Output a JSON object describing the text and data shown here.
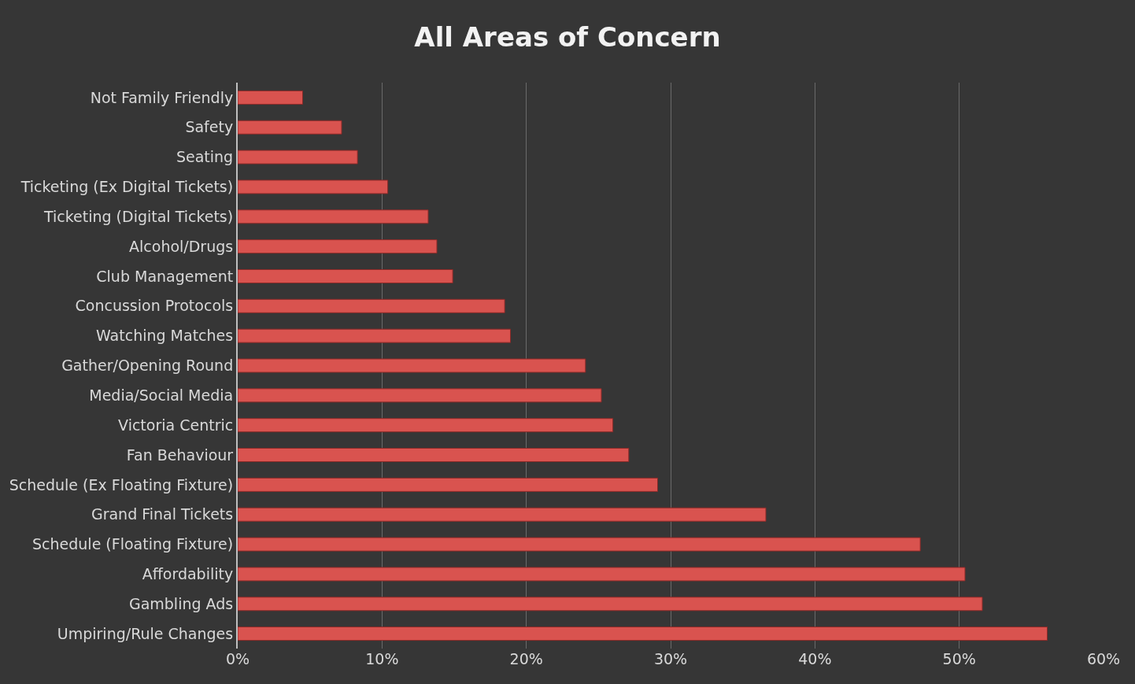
{
  "chart_data": {
    "type": "bar",
    "orientation": "horizontal",
    "title": "All Areas of Concern",
    "categories": [
      "Not Family Friendly",
      "Safety",
      "Seating",
      "Ticketing (Ex Digital Tickets)",
      "Ticketing (Digital Tickets)",
      "Alcohol/Drugs",
      "Club Management",
      "Concussion Protocols",
      "Watching Matches",
      "Gather/Opening Round",
      "Media/Social Media",
      "Victoria Centric",
      "Fan Behaviour",
      "Schedule (Ex Floating Fixture)",
      "Grand Final Tickets",
      "Schedule (Floating Fixture)",
      "Affordability",
      "Gambling Ads",
      "Umpiring/Rule Changes"
    ],
    "values": [
      4.5,
      7.2,
      8.3,
      10.4,
      13.2,
      13.8,
      14.9,
      18.5,
      18.9,
      24.1,
      25.2,
      26.0,
      27.1,
      29.1,
      36.6,
      47.3,
      50.4,
      51.6,
      56.1
    ],
    "color": "#d9534f",
    "xlim": [
      0,
      60
    ],
    "xticks": [
      {
        "value": 0,
        "label": "0%"
      },
      {
        "value": 10,
        "label": "10%"
      },
      {
        "value": 20,
        "label": "20%"
      },
      {
        "value": 30,
        "label": "30%"
      },
      {
        "value": 40,
        "label": "40%"
      },
      {
        "value": 50,
        "label": "50%"
      },
      {
        "value": 60,
        "label": "60%"
      }
    ],
    "grid": "x"
  }
}
